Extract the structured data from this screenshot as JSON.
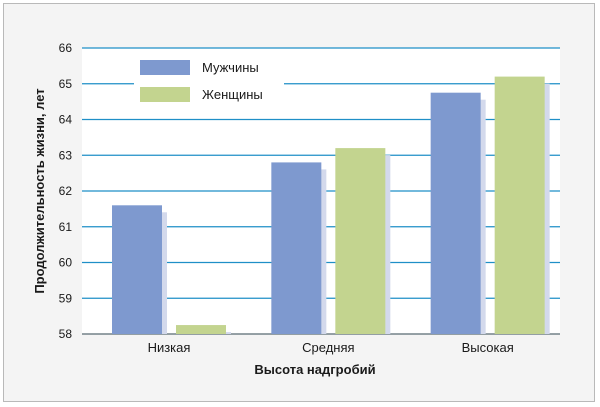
{
  "chart_data": {
    "type": "bar",
    "categories": [
      "Низкая",
      "Средняя",
      "Высокая"
    ],
    "series": [
      {
        "name": "Мужчины",
        "values": [
          61.6,
          62.8,
          64.75
        ],
        "color": "#7e99cf"
      },
      {
        "name": "Женщины",
        "values": [
          58.25,
          63.2,
          65.2
        ],
        "color": "#c3d48f"
      }
    ],
    "xlabel": "Высота надгробий",
    "ylabel": "Продолжительность жизни, лет",
    "ylim": [
      58,
      66
    ],
    "yticks": [
      58,
      59,
      60,
      61,
      62,
      63,
      64,
      65,
      66
    ],
    "grid": true,
    "grid_color": "#1f8fc7",
    "legend_position": "top-left"
  }
}
